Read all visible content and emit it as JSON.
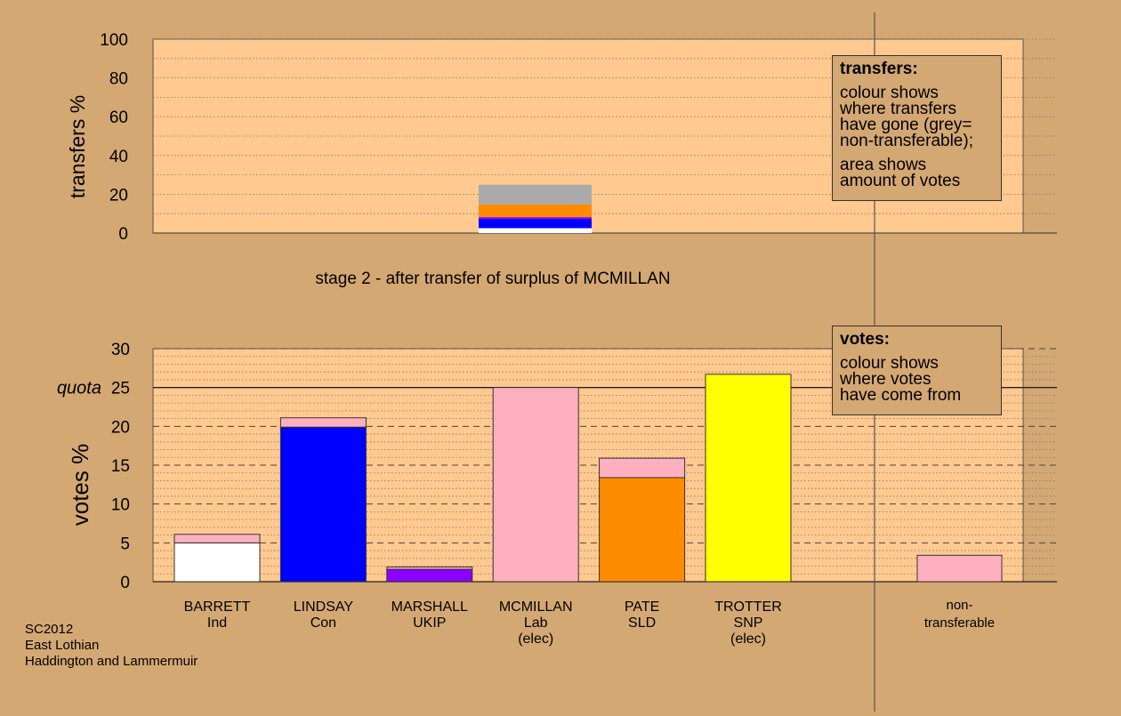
{
  "chart_data": [
    {
      "type": "bar",
      "ylabel": "transfers %",
      "ylim": [
        0,
        100
      ],
      "yticks": [
        0,
        20,
        40,
        60,
        80,
        100
      ],
      "grid": "dotted",
      "caption": "stage 2 - after transfer of surplus of MCMILLAN",
      "stacked_transfer": {
        "source": "MCMILLAN",
        "segments": [
          {
            "to": "BARRETT",
            "color": "#ffffff",
            "value": 2.5
          },
          {
            "to": "LINDSAY",
            "color": "#0000ff",
            "value": 4.8
          },
          {
            "to": "MARSHALL",
            "color": "#8b00ff",
            "value": 0.9
          },
          {
            "to": "PATE",
            "color": "#ff8c00",
            "value": 6.6
          },
          {
            "to": "non-transferable",
            "color": "#aaaaaa",
            "value": 10.1
          }
        ]
      },
      "legend": {
        "title": "transfers:",
        "paragraphs": [
          "colour shows\nwhere transfers\nhave gone (grey=\nnon-transferable);",
          "area shows\namount of votes"
        ],
        "position": "top-right"
      }
    },
    {
      "type": "bar",
      "ylabel": "votes %",
      "ylim": [
        0,
        30
      ],
      "yticks": [
        0,
        5,
        10,
        15,
        20,
        25,
        30
      ],
      "grid": "dashed",
      "quota": 25,
      "quota_label": "quota",
      "categories": [
        {
          "name": "BARRETT",
          "party": "Ind",
          "note": ""
        },
        {
          "name": "LINDSAY",
          "party": "Con",
          "note": ""
        },
        {
          "name": "MARSHALL",
          "party": "UKIP",
          "note": ""
        },
        {
          "name": "MCMILLAN",
          "party": "Lab",
          "note": "(elec)"
        },
        {
          "name": "PATE",
          "party": "SLD",
          "note": ""
        },
        {
          "name": "TROTTER",
          "party": "SNP",
          "note": "(elec)"
        }
      ],
      "bars": [
        {
          "base": 5.0,
          "base_color": "#ffffff",
          "transfer": 1.1,
          "total": 6.1
        },
        {
          "base": 19.9,
          "base_color": "#0000ff",
          "transfer": 1.2,
          "total": 21.1
        },
        {
          "base": 1.6,
          "base_color": "#8b00ff",
          "transfer": 0.3,
          "total": 1.9
        },
        {
          "base": 25.0,
          "base_color": "#ffb0c0",
          "transfer": 0,
          "total": 25.0
        },
        {
          "base": 13.4,
          "base_color": "#ff8c00",
          "transfer": 2.5,
          "total": 15.9
        },
        {
          "base": 26.7,
          "base_color": "#ffff00",
          "transfer": 0,
          "total": 26.7
        }
      ],
      "transfer_color": "#ffb0c0",
      "nontransferable": {
        "label_1": "non-",
        "label_2": "transferable",
        "value": 3.4
      },
      "legend": {
        "title": "votes:",
        "paragraphs": [
          "colour shows\nwhere votes\nhave come from"
        ],
        "position": "top-right"
      }
    }
  ],
  "footer": {
    "line1": "SC2012",
    "line2": "East Lothian",
    "line3": "Haddington and Lammermuir"
  },
  "colors": {
    "background": "#d4a873",
    "panel": "#ffc98f",
    "transfer": "#ffb0c0"
  }
}
